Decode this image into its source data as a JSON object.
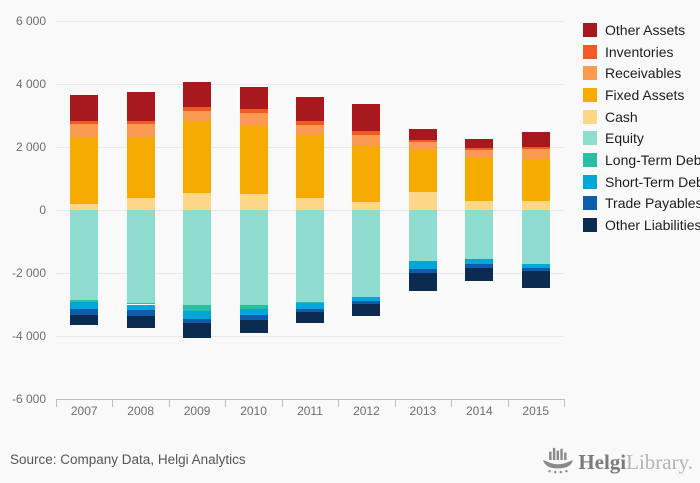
{
  "chart_data": {
    "type": "bar",
    "stacked": true,
    "categories": [
      "2007",
      "2008",
      "2009",
      "2010",
      "2011",
      "2012",
      "2013",
      "2014",
      "2015"
    ],
    "series": [
      {
        "name": "Other Assets",
        "color": "#a8191f",
        "values": [
          820,
          920,
          790,
          670,
          750,
          870,
          350,
          280,
          480
        ]
      },
      {
        "name": "Inventories",
        "color": "#f15a24",
        "values": [
          110,
          110,
          130,
          150,
          130,
          130,
          40,
          50,
          50
        ]
      },
      {
        "name": "Receivables",
        "color": "#fb9a51",
        "values": [
          390,
          390,
          300,
          400,
          320,
          340,
          280,
          270,
          330
        ]
      },
      {
        "name": "Fixed Assets",
        "color": "#f6ab00",
        "values": [
          2130,
          1940,
          2280,
          2150,
          1990,
          1770,
          1330,
          1340,
          1340
        ]
      },
      {
        "name": "Cash",
        "color": "#fbd787",
        "values": [
          200,
          390,
          550,
          520,
          390,
          260,
          560,
          300,
          270
        ]
      },
      {
        "name": "Equity",
        "color": "#8edccf",
        "values": [
          -2850,
          -2950,
          -3020,
          -3010,
          -2930,
          -2750,
          -1620,
          -1560,
          -1720
        ]
      },
      {
        "name": "Long-Term Debt",
        "color": "#2abfa4",
        "values": [
          -60,
          -50,
          -190,
          -130,
          -30,
          0,
          0,
          0,
          0
        ]
      },
      {
        "name": "Short-Term Debt",
        "color": "#00a7d8",
        "values": [
          -220,
          -190,
          -250,
          -200,
          -190,
          -130,
          -250,
          -140,
          -110
        ]
      },
      {
        "name": "Trade Payables",
        "color": "#0e5cac",
        "values": [
          -190,
          -160,
          -140,
          -160,
          -100,
          -100,
          -140,
          -140,
          -110
        ]
      },
      {
        "name": "Other Liabilities",
        "color": "#0b2c50",
        "values": [
          -330,
          -400,
          -450,
          -390,
          -330,
          -390,
          -550,
          -400,
          -530
        ]
      }
    ],
    "stack_order_positive": [
      "Cash",
      "Fixed Assets",
      "Receivables",
      "Inventories",
      "Other Assets"
    ],
    "stack_order_negative": [
      "Equity",
      "Long-Term Debt",
      "Short-Term Debt",
      "Trade Payables",
      "Other Liabilities"
    ],
    "title": "",
    "xlabel": "",
    "ylabel": "",
    "ylim": [
      -6000,
      6000
    ],
    "y_ticks": [
      6000,
      4000,
      2000,
      0,
      -2000,
      -4000,
      -6000
    ],
    "y_tick_labels": [
      "6 000",
      "4 000",
      "2 000",
      "0",
      "-2 000",
      "-4 000",
      "-6 000"
    ],
    "grid": true,
    "legend_position": "right",
    "grid_color": "#e9e9e9",
    "axis_color": "#b3bdd6",
    "background_color": "#f9f9f9"
  },
  "footer": {
    "source": "Source: Company Data, Helgi Analytics"
  },
  "logo": {
    "icon": "viking-ship-bar-chart-icon",
    "name_bold": "Helgi",
    "name_light": "Library."
  }
}
